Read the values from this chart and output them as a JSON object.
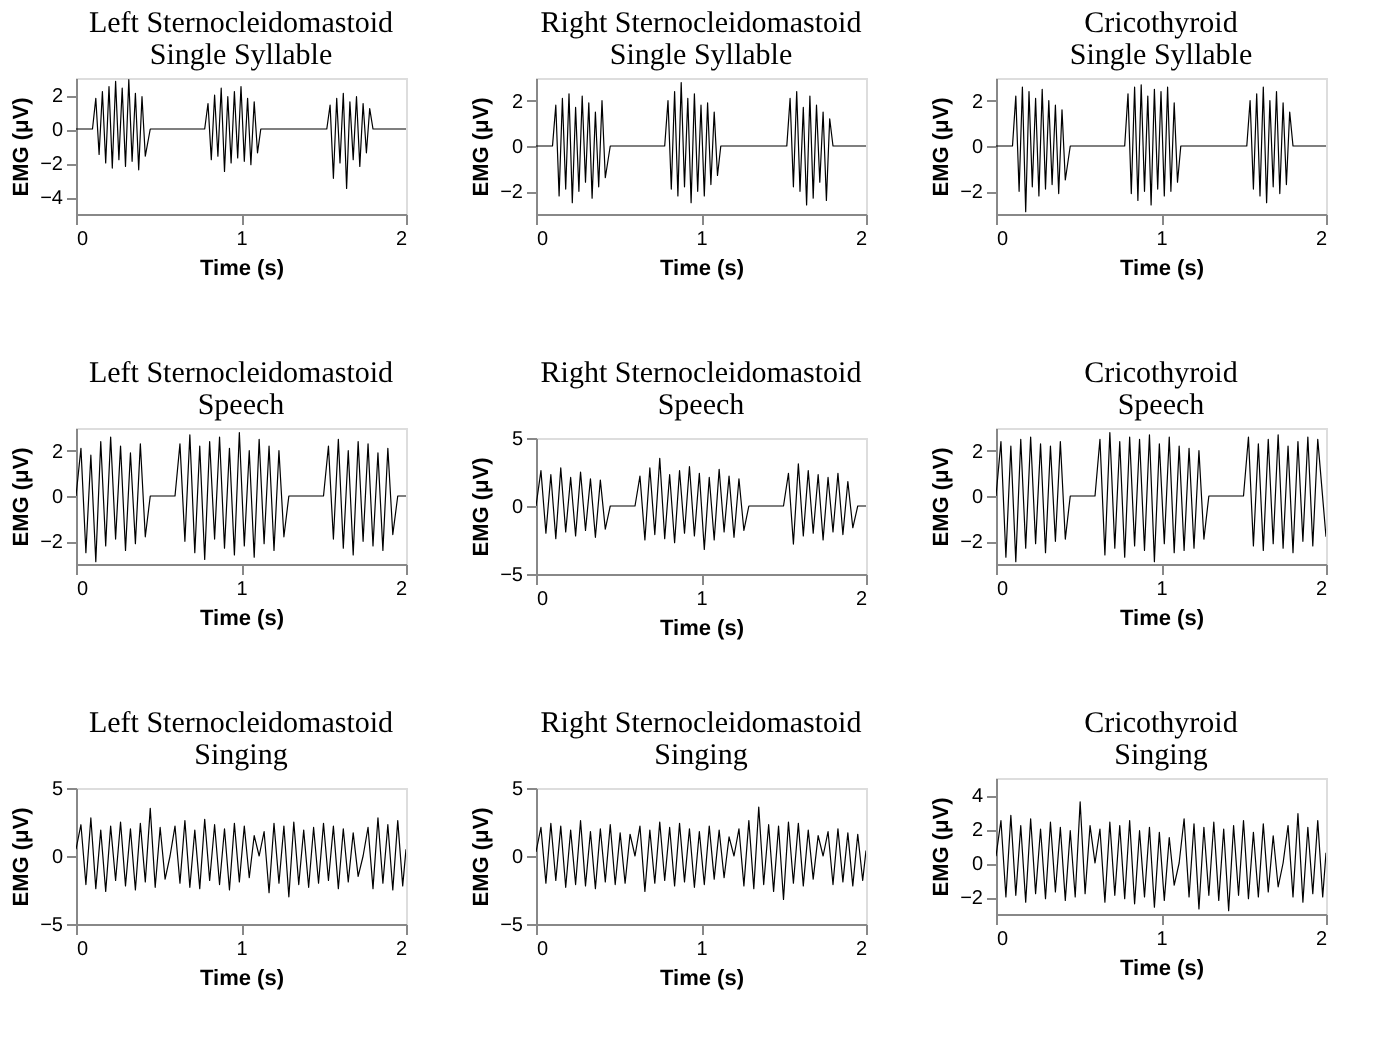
{
  "chart_data": [
    {
      "type": "line",
      "title": "Left Sternocleidomastoid",
      "subtitle": "Single Syllable",
      "xlabel": "Time (s)",
      "ylabel": "EMG (μV)",
      "xlim": [
        0,
        2
      ],
      "xticks": [
        0,
        1,
        2
      ],
      "ylim": [
        -5,
        3
      ],
      "yticks": [
        -4,
        -2,
        0,
        2
      ],
      "x": [
        0,
        0.1,
        0.12,
        0.14,
        0.16,
        0.18,
        0.2,
        0.22,
        0.24,
        0.26,
        0.28,
        0.3,
        0.32,
        0.34,
        0.36,
        0.38,
        0.4,
        0.42,
        0.45,
        0.78,
        0.8,
        0.82,
        0.84,
        0.86,
        0.88,
        0.9,
        0.92,
        0.94,
        0.96,
        0.98,
        1.0,
        1.02,
        1.04,
        1.06,
        1.08,
        1.1,
        1.12,
        1.52,
        1.54,
        1.56,
        1.58,
        1.6,
        1.62,
        1.64,
        1.66,
        1.68,
        1.7,
        1.72,
        1.74,
        1.76,
        1.78,
        1.8,
        2
      ],
      "series": [
        {
          "color": "#000000",
          "values": [
            0,
            0,
            1.8,
            -1.5,
            2.2,
            -2.0,
            2.5,
            -2.3,
            2.8,
            -1.8,
            2.4,
            -2.2,
            2.9,
            -1.9,
            2.1,
            -2.4,
            1.9,
            -1.6,
            0,
            0,
            1.5,
            -1.8,
            2.0,
            -1.6,
            2.4,
            -2.5,
            1.9,
            -2.0,
            2.2,
            -1.7,
            2.5,
            -1.9,
            1.8,
            -2.1,
            1.6,
            -1.4,
            0,
            0,
            1.4,
            -2.9,
            1.8,
            -2.0,
            2.1,
            -3.5,
            1.6,
            -1.8,
            1.9,
            -2.2,
            1.5,
            -1.4,
            1.2,
            0,
            0
          ]
        }
      ]
    },
    {
      "type": "line",
      "title": "Right Sternocleidomastoid",
      "subtitle": "Single Syllable",
      "xlabel": "Time (s)",
      "ylabel": "EMG (μV)",
      "xlim": [
        0,
        2
      ],
      "xticks": [
        0,
        1,
        2
      ],
      "ylim": [
        -3,
        3
      ],
      "yticks": [
        -2,
        0,
        2
      ],
      "x": [
        0,
        0.1,
        0.12,
        0.14,
        0.16,
        0.18,
        0.2,
        0.22,
        0.24,
        0.26,
        0.28,
        0.3,
        0.32,
        0.34,
        0.36,
        0.38,
        0.4,
        0.42,
        0.45,
        0.78,
        0.8,
        0.82,
        0.84,
        0.86,
        0.88,
        0.9,
        0.92,
        0.94,
        0.96,
        0.98,
        1.0,
        1.02,
        1.04,
        1.06,
        1.08,
        1.1,
        1.12,
        1.52,
        1.54,
        1.56,
        1.58,
        1.6,
        1.62,
        1.64,
        1.66,
        1.68,
        1.7,
        1.72,
        1.74,
        1.76,
        1.78,
        1.8,
        2
      ],
      "series": [
        {
          "color": "#000000",
          "values": [
            0,
            0,
            1.8,
            -2.2,
            2.1,
            -1.9,
            2.3,
            -2.5,
            1.7,
            -2.0,
            2.2,
            -1.6,
            1.9,
            -2.3,
            1.5,
            -1.8,
            2.0,
            -1.4,
            0,
            0,
            2.0,
            -1.9,
            2.4,
            -2.2,
            2.8,
            -1.8,
            2.1,
            -2.5,
            2.3,
            -2.0,
            1.8,
            -2.2,
            1.9,
            -1.7,
            1.5,
            -1.3,
            0,
            0,
            2.1,
            -1.8,
            2.4,
            -2.0,
            1.7,
            -2.6,
            2.2,
            -2.3,
            1.8,
            -1.6,
            1.5,
            -2.4,
            1.2,
            0,
            0
          ]
        }
      ]
    },
    {
      "type": "line",
      "title": "Cricothyroid",
      "subtitle": "Single Syllable",
      "xlabel": "Time (s)",
      "ylabel": "EMG (μV)",
      "xlim": [
        0,
        2
      ],
      "xticks": [
        0,
        1,
        2
      ],
      "ylim": [
        -3,
        3
      ],
      "yticks": [
        -2,
        0,
        2
      ],
      "x": [
        0,
        0.1,
        0.12,
        0.14,
        0.16,
        0.18,
        0.2,
        0.22,
        0.24,
        0.26,
        0.28,
        0.3,
        0.32,
        0.34,
        0.36,
        0.38,
        0.4,
        0.42,
        0.45,
        0.78,
        0.8,
        0.82,
        0.84,
        0.86,
        0.88,
        0.9,
        0.92,
        0.94,
        0.96,
        0.98,
        1.0,
        1.02,
        1.04,
        1.06,
        1.08,
        1.1,
        1.12,
        1.52,
        1.54,
        1.56,
        1.58,
        1.6,
        1.62,
        1.64,
        1.66,
        1.68,
        1.7,
        1.72,
        1.74,
        1.76,
        1.78,
        1.8,
        2
      ],
      "series": [
        {
          "color": "#000000",
          "values": [
            0,
            0,
            2.2,
            -2.0,
            2.6,
            -2.9,
            2.4,
            -1.8,
            2.1,
            -2.2,
            2.5,
            -1.9,
            2.0,
            -1.7,
            1.8,
            -2.1,
            1.6,
            -1.5,
            0,
            0,
            2.3,
            -2.1,
            2.6,
            -2.4,
            2.7,
            -2.0,
            2.2,
            -2.6,
            2.5,
            -1.9,
            2.4,
            -2.2,
            2.6,
            -2.0,
            1.9,
            -1.6,
            0,
            0,
            2.0,
            -1.9,
            2.3,
            -2.2,
            2.6,
            -2.5,
            2.0,
            -1.8,
            2.4,
            -2.1,
            1.9,
            -1.7,
            1.5,
            0,
            0
          ]
        }
      ]
    },
    {
      "type": "line",
      "title": "Left Sternocleidomastoid",
      "subtitle": "Speech",
      "xlabel": "Time (s)",
      "ylabel": "EMG (μV)",
      "xlim": [
        0,
        2
      ],
      "xticks": [
        0,
        1,
        2
      ],
      "ylim": [
        -3,
        3
      ],
      "yticks": [
        -2,
        0,
        2
      ],
      "x": [
        0,
        0.03,
        0.06,
        0.09,
        0.12,
        0.15,
        0.18,
        0.21,
        0.24,
        0.27,
        0.3,
        0.33,
        0.36,
        0.39,
        0.42,
        0.45,
        0.6,
        0.63,
        0.66,
        0.69,
        0.72,
        0.75,
        0.78,
        0.81,
        0.84,
        0.87,
        0.9,
        0.93,
        0.96,
        0.99,
        1.02,
        1.05,
        1.08,
        1.11,
        1.14,
        1.17,
        1.2,
        1.23,
        1.26,
        1.29,
        1.5,
        1.53,
        1.56,
        1.59,
        1.62,
        1.65,
        1.68,
        1.71,
        1.74,
        1.77,
        1.8,
        1.83,
        1.86,
        1.89,
        1.92,
        1.95,
        2
      ],
      "series": [
        {
          "color": "#000000",
          "values": [
            0,
            2.1,
            -2.5,
            1.8,
            -2.9,
            2.4,
            -2.2,
            2.6,
            -1.9,
            2.2,
            -2.4,
            1.9,
            -2.1,
            2.3,
            -1.8,
            0,
            0,
            2.3,
            -2.0,
            2.7,
            -2.5,
            2.2,
            -2.8,
            2.4,
            -1.9,
            2.6,
            -2.3,
            2.1,
            -2.6,
            2.8,
            -2.2,
            2.0,
            -2.7,
            2.5,
            -2.1,
            2.2,
            -2.4,
            2.0,
            -1.8,
            0,
            0,
            2.2,
            -1.9,
            2.5,
            -2.3,
            2.0,
            -2.6,
            2.4,
            -2.0,
            2.3,
            -2.2,
            1.9,
            -2.4,
            2.1,
            -1.7,
            0,
            0
          ]
        }
      ]
    },
    {
      "type": "line",
      "title": "Right Sternocleidomastoid",
      "subtitle": "Speech",
      "xlabel": "Time (s)",
      "ylabel": "EMG (μV)",
      "xlim": [
        0,
        2
      ],
      "xticks": [
        0,
        1,
        2
      ],
      "ylim": [
        -5,
        5
      ],
      "yticks": [
        -5,
        0,
        5
      ],
      "x": [
        0,
        0.03,
        0.06,
        0.09,
        0.12,
        0.15,
        0.18,
        0.21,
        0.24,
        0.27,
        0.3,
        0.33,
        0.36,
        0.39,
        0.42,
        0.45,
        0.6,
        0.63,
        0.66,
        0.69,
        0.72,
        0.75,
        0.78,
        0.81,
        0.84,
        0.87,
        0.9,
        0.93,
        0.96,
        0.99,
        1.02,
        1.05,
        1.08,
        1.11,
        1.14,
        1.17,
        1.2,
        1.23,
        1.26,
        1.29,
        1.5,
        1.53,
        1.56,
        1.59,
        1.62,
        1.65,
        1.68,
        1.71,
        1.74,
        1.77,
        1.8,
        1.83,
        1.86,
        1.89,
        1.92,
        1.95,
        2
      ],
      "series": [
        {
          "color": "#000000",
          "values": [
            0,
            2.6,
            -2.0,
            2.3,
            -2.4,
            2.8,
            -1.9,
            2.1,
            -2.2,
            2.5,
            -1.8,
            2.0,
            -2.3,
            1.9,
            -1.7,
            0,
            0,
            2.2,
            -2.5,
            2.8,
            -2.1,
            3.5,
            -2.4,
            2.3,
            -2.7,
            2.6,
            -2.0,
            2.9,
            -2.2,
            2.4,
            -3.2,
            2.1,
            -2.5,
            2.7,
            -1.9,
            2.2,
            -2.3,
            2.0,
            -1.8,
            0,
            0,
            2.4,
            -2.8,
            3.1,
            -2.2,
            2.6,
            -2.0,
            2.3,
            -2.5,
            2.1,
            -1.9,
            2.4,
            -2.1,
            1.8,
            -1.6,
            0,
            0
          ]
        }
      ]
    },
    {
      "type": "line",
      "title": "Cricothyroid",
      "subtitle": "Speech",
      "xlabel": "Time (s)",
      "ylabel": "EMG (μV)",
      "xlim": [
        0,
        2
      ],
      "xticks": [
        0,
        1,
        2
      ],
      "ylim": [
        -3,
        3
      ],
      "yticks": [
        -2,
        0,
        2
      ],
      "x": [
        0,
        0.03,
        0.06,
        0.09,
        0.12,
        0.15,
        0.18,
        0.21,
        0.24,
        0.27,
        0.3,
        0.33,
        0.36,
        0.39,
        0.42,
        0.45,
        0.6,
        0.63,
        0.66,
        0.69,
        0.72,
        0.75,
        0.78,
        0.81,
        0.84,
        0.87,
        0.9,
        0.93,
        0.96,
        0.99,
        1.02,
        1.05,
        1.08,
        1.11,
        1.14,
        1.17,
        1.2,
        1.23,
        1.26,
        1.29,
        1.5,
        1.53,
        1.56,
        1.59,
        1.62,
        1.65,
        1.68,
        1.71,
        1.74,
        1.77,
        1.8,
        1.83,
        1.86,
        1.89,
        1.92,
        1.95,
        2
      ],
      "series": [
        {
          "color": "#000000",
          "values": [
            0,
            2.4,
            -2.7,
            2.2,
            -2.9,
            2.5,
            -2.3,
            2.6,
            -2.1,
            2.3,
            -2.5,
            2.2,
            -2.0,
            2.4,
            -1.9,
            0,
            0,
            2.5,
            -2.6,
            2.8,
            -2.3,
            2.4,
            -2.7,
            2.6,
            -2.2,
            2.5,
            -2.4,
            2.7,
            -2.9,
            2.3,
            -2.1,
            2.6,
            -2.5,
            2.2,
            -2.4,
            2.1,
            -2.3,
            2.0,
            -1.9,
            0,
            0,
            2.6,
            -2.2,
            2.3,
            -2.4,
            2.5,
            -2.1,
            2.7,
            -2.3,
            2.2,
            -2.5,
            2.4,
            -2.0,
            2.6,
            -2.2,
            2.5,
            -1.8
          ]
        }
      ]
    },
    {
      "type": "line",
      "title": "Left Sternocleidomastoid",
      "subtitle": "Singing",
      "xlabel": "Time (s)",
      "ylabel": "EMG (μV)",
      "xlim": [
        0,
        2
      ],
      "xticks": [
        0,
        1,
        2
      ],
      "ylim": [
        -5,
        5
      ],
      "yticks": [
        -5,
        0,
        5
      ],
      "x": [
        0,
        0.03,
        0.06,
        0.09,
        0.12,
        0.15,
        0.18,
        0.21,
        0.24,
        0.27,
        0.3,
        0.33,
        0.36,
        0.39,
        0.42,
        0.45,
        0.48,
        0.51,
        0.54,
        0.57,
        0.6,
        0.63,
        0.66,
        0.69,
        0.72,
        0.75,
        0.78,
        0.81,
        0.84,
        0.87,
        0.9,
        0.93,
        0.96,
        0.99,
        1.02,
        1.05,
        1.08,
        1.11,
        1.14,
        1.17,
        1.2,
        1.23,
        1.26,
        1.29,
        1.32,
        1.35,
        1.38,
        1.41,
        1.44,
        1.47,
        1.5,
        1.53,
        1.56,
        1.59,
        1.62,
        1.65,
        1.68,
        1.71,
        1.74,
        1.77,
        1.8,
        1.83,
        1.86,
        1.89,
        1.92,
        1.95,
        1.98,
        2
      ],
      "series": [
        {
          "color": "#000000",
          "values": [
            0.5,
            2.3,
            -2.1,
            2.8,
            -2.4,
            1.9,
            -2.6,
            2.2,
            -1.8,
            2.5,
            -2.2,
            2.0,
            -2.5,
            2.4,
            -1.9,
            3.5,
            -2.3,
            2.1,
            -1.7,
            0,
            2.2,
            -2.0,
            2.6,
            -2.3,
            1.9,
            -2.4,
            2.7,
            -1.8,
            2.3,
            -2.1,
            2.0,
            -2.5,
            2.4,
            -1.9,
            2.2,
            -1.6,
            1.5,
            0,
            1.8,
            -2.7,
            2.4,
            -2.0,
            2.2,
            -3.0,
            2.5,
            -2.1,
            1.9,
            -2.3,
            2.1,
            -2.0,
            2.4,
            -1.8,
            2.2,
            -2.4,
            2.0,
            -1.9,
            1.7,
            -1.5,
            0,
            2.1,
            -2.4,
            2.8,
            -2.0,
            2.3,
            -2.5,
            2.6,
            -2.2,
            0.5
          ]
        }
      ]
    },
    {
      "type": "line",
      "title": "Right Sternocleidomastoid",
      "subtitle": "Singing",
      "xlabel": "Time (s)",
      "ylabel": "EMG (μV)",
      "xlim": [
        0,
        2
      ],
      "xticks": [
        0,
        1,
        2
      ],
      "ylim": [
        -5,
        5
      ],
      "yticks": [
        -5,
        0,
        5
      ],
      "x": [
        0,
        0.03,
        0.06,
        0.09,
        0.12,
        0.15,
        0.18,
        0.21,
        0.24,
        0.27,
        0.3,
        0.33,
        0.36,
        0.39,
        0.42,
        0.45,
        0.48,
        0.51,
        0.54,
        0.57,
        0.6,
        0.63,
        0.66,
        0.69,
        0.72,
        0.75,
        0.78,
        0.81,
        0.84,
        0.87,
        0.9,
        0.93,
        0.96,
        0.99,
        1.02,
        1.05,
        1.08,
        1.11,
        1.14,
        1.17,
        1.2,
        1.23,
        1.26,
        1.29,
        1.32,
        1.35,
        1.38,
        1.41,
        1.44,
        1.47,
        1.5,
        1.53,
        1.56,
        1.59,
        1.62,
        1.65,
        1.68,
        1.71,
        1.74,
        1.77,
        1.8,
        1.83,
        1.86,
        1.89,
        1.92,
        1.95,
        1.98,
        2
      ],
      "series": [
        {
          "color": "#000000",
          "values": [
            0.3,
            2.1,
            -2.0,
            2.4,
            -1.8,
            2.2,
            -2.3,
            1.9,
            -2.1,
            2.6,
            -2.2,
            1.8,
            -2.4,
            2.0,
            -1.9,
            2.3,
            -2.1,
            1.7,
            -2.0,
            1.6,
            0,
            2.2,
            -2.6,
            1.9,
            -2.0,
            2.5,
            -1.8,
            2.1,
            -2.2,
            2.4,
            -1.9,
            2.0,
            -2.3,
            1.8,
            -2.1,
            2.2,
            -1.7,
            1.9,
            -1.6,
            1.4,
            0,
            2.0,
            -2.2,
            2.6,
            -2.4,
            3.6,
            -2.1,
            2.3,
            -2.6,
            2.2,
            -3.2,
            2.5,
            -2.0,
            2.4,
            -2.2,
            1.9,
            -1.7,
            1.5,
            0,
            1.8,
            -2.1,
            2.0,
            -1.9,
            1.7,
            -2.2,
            1.6,
            -1.8,
            0.4
          ]
        }
      ]
    },
    {
      "type": "line",
      "title": "Cricothyroid",
      "subtitle": "Singing",
      "xlabel": "Time (s)",
      "ylabel": "EMG (μV)",
      "xlim": [
        0,
        2
      ],
      "xticks": [
        0,
        1,
        2
      ],
      "ylim": [
        -3,
        5
      ],
      "yticks": [
        -2,
        0,
        2,
        4
      ],
      "x": [
        0,
        0.03,
        0.06,
        0.09,
        0.12,
        0.15,
        0.18,
        0.21,
        0.24,
        0.27,
        0.3,
        0.33,
        0.36,
        0.39,
        0.42,
        0.45,
        0.48,
        0.51,
        0.54,
        0.57,
        0.6,
        0.63,
        0.66,
        0.69,
        0.72,
        0.75,
        0.78,
        0.81,
        0.84,
        0.87,
        0.9,
        0.93,
        0.96,
        0.99,
        1.02,
        1.05,
        1.08,
        1.11,
        1.14,
        1.17,
        1.2,
        1.23,
        1.26,
        1.29,
        1.32,
        1.35,
        1.38,
        1.41,
        1.44,
        1.47,
        1.5,
        1.53,
        1.56,
        1.59,
        1.62,
        1.65,
        1.68,
        1.71,
        1.74,
        1.77,
        1.8,
        1.83,
        1.86,
        1.89,
        1.92,
        1.95,
        1.98,
        2
      ],
      "series": [
        {
          "color": "#000000",
          "values": [
            0.4,
            2.5,
            -2.0,
            2.8,
            -1.9,
            2.2,
            -2.3,
            2.6,
            -1.8,
            2.0,
            -2.1,
            2.4,
            -1.7,
            2.1,
            -2.2,
            1.9,
            -2.0,
            3.6,
            -1.8,
            2.2,
            0,
            2.0,
            -2.3,
            2.4,
            -1.9,
            2.2,
            -2.1,
            2.5,
            -2.4,
            1.9,
            -2.0,
            2.1,
            -2.6,
            1.8,
            -2.2,
            1.5,
            -1.3,
            0,
            2.6,
            -2.0,
            2.3,
            -2.7,
            2.1,
            -1.9,
            2.4,
            -2.2,
            2.0,
            -2.8,
            2.2,
            -1.9,
            2.5,
            -2.1,
            1.8,
            -2.0,
            2.3,
            -1.7,
            1.6,
            -1.4,
            0,
            2.2,
            -2.0,
            2.9,
            -2.3,
            2.1,
            -1.8,
            2.5,
            -2.0,
            0.6
          ]
        }
      ]
    }
  ]
}
